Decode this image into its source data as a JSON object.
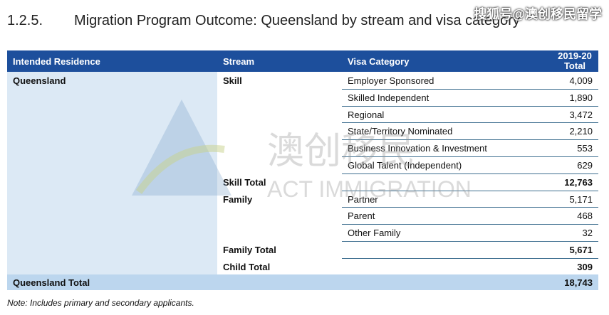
{
  "title": {
    "number": "1.2.5.",
    "text": "Migration Program Outcome: Queensland by stream and visa category"
  },
  "watermark": {
    "source": "搜狐号@澳创移民留学",
    "logo_cn": "澳创移民",
    "logo_en": "ACT IMMIGRATION"
  },
  "table": {
    "headers": {
      "residence": "Intended Residence",
      "stream": "Stream",
      "visa": "Visa Category",
      "total": "2019-20 Total"
    },
    "residence": "Queensland",
    "rows": [
      {
        "stream": "Skill",
        "visa": "Employer Sponsored",
        "value": "4,009"
      },
      {
        "stream": "",
        "visa": "Skilled Independent",
        "value": "1,890"
      },
      {
        "stream": "",
        "visa": "Regional",
        "value": "3,472"
      },
      {
        "stream": "",
        "visa": "State/Territory Nominated",
        "value": "2,210"
      },
      {
        "stream": "",
        "visa": "Business Innovation & Investment",
        "value": "553"
      },
      {
        "stream": "",
        "visa": "Global Talent (Independent)",
        "value": "629"
      },
      {
        "stream": "Skill Total",
        "visa": "",
        "value": "12,763",
        "bold": true
      },
      {
        "stream": "Family",
        "visa": "Partner",
        "value": "5,171"
      },
      {
        "stream": "",
        "visa": "Parent",
        "value": "468"
      },
      {
        "stream": "",
        "visa": "Other Family",
        "value": "32"
      },
      {
        "stream": "Family Total",
        "visa": "",
        "value": "5,671",
        "bold": true
      },
      {
        "stream": "Child Total",
        "visa": "",
        "value": "309",
        "bold": true
      }
    ],
    "grand_total": {
      "label": "Queensland Total",
      "value": "18,743"
    }
  },
  "note": "Note: Includes primary and secondary applicants."
}
